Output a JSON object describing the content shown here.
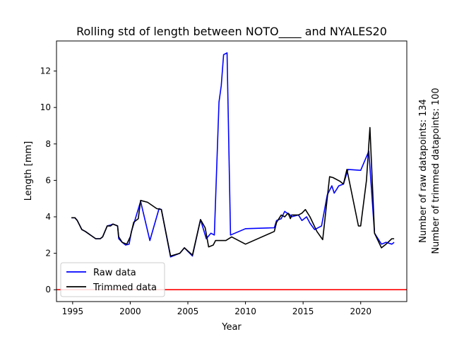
{
  "chart_data": {
    "type": "line",
    "title": "Rolling std of length between NOTO____ and NYALES20",
    "xlabel": "Year",
    "ylabel": "Length [mm]",
    "xlim": [
      1993.6,
      2024.0
    ],
    "ylim": [
      -0.65,
      13.65
    ],
    "x_ticks": [
      1995,
      2000,
      2005,
      2010,
      2015,
      2020
    ],
    "y_ticks": [
      0,
      2,
      4,
      6,
      8,
      10,
      12
    ],
    "grid": false,
    "legend_position": "lower-left",
    "side_annotations": [
      "Number of raw datapoints: 134",
      "Number of trimmed datapoints: 100"
    ],
    "zero_line": {
      "y": 0,
      "color": "#ff0000"
    },
    "series": [
      {
        "name": "Raw data",
        "color": "#0000ff",
        "x": [
          1994.9,
          1995.2,
          1995.4,
          1995.8,
          1996.1,
          1997.0,
          1997.4,
          1997.6,
          1998.0,
          1998.3,
          1998.5,
          1998.9,
          1999.0,
          1999.3,
          1999.6,
          1999.9,
          2000.1,
          2000.4,
          2000.9,
          2001.7,
          2002.5,
          2002.7,
          2003.5,
          2004.3,
          2004.7,
          2005.4,
          2006.1,
          2006.6,
          2007.0,
          2007.3,
          2007.7,
          2007.9,
          2008.1,
          2008.4,
          2008.7,
          2010.0,
          2012.5,
          2012.7,
          2013.1,
          2013.4,
          2013.6,
          2013.8,
          2014.0,
          2014.6,
          2014.9,
          2015.3,
          2015.6,
          2016.0,
          2016.6,
          2017.1,
          2017.5,
          2017.7,
          2017.9,
          2018.1,
          2018.5,
          2018.9,
          2020.0,
          2020.7,
          2021.2,
          2021.8,
          2022.2,
          2022.7,
          2022.9
        ],
        "values": [
          3.95,
          3.95,
          3.8,
          3.3,
          3.2,
          2.8,
          2.8,
          2.9,
          3.5,
          3.55,
          3.6,
          3.5,
          2.8,
          2.6,
          2.45,
          2.5,
          3.2,
          3.8,
          4.85,
          2.7,
          4.45,
          4.4,
          1.8,
          2.0,
          2.3,
          1.85,
          3.85,
          2.8,
          3.1,
          3.0,
          10.3,
          11.2,
          12.9,
          13.0,
          3.0,
          3.35,
          3.4,
          3.8,
          3.9,
          4.3,
          4.2,
          4.15,
          4.0,
          4.1,
          3.8,
          4.0,
          3.65,
          3.3,
          3.5,
          5.2,
          5.7,
          5.3,
          5.5,
          5.7,
          5.8,
          6.6,
          6.55,
          7.6,
          3.1,
          2.5,
          2.6,
          2.5,
          2.6
        ]
      },
      {
        "name": "Trimmed data",
        "color": "#000000",
        "x": [
          1994.9,
          1995.2,
          1995.4,
          1995.8,
          1996.1,
          1997.0,
          1997.4,
          1997.6,
          1998.0,
          1998.3,
          1998.5,
          1998.9,
          1999.0,
          1999.3,
          1999.7,
          2000.0,
          2000.3,
          2000.7,
          2000.9,
          2001.5,
          2002.3,
          2002.7,
          2003.5,
          2004.3,
          2004.7,
          2005.4,
          2006.1,
          2006.5,
          2006.8,
          2007.2,
          2007.4,
          2008.3,
          2008.8,
          2010.0,
          2012.5,
          2012.7,
          2013.1,
          2013.4,
          2013.7,
          2013.9,
          2014.0,
          2014.6,
          2014.9,
          2015.2,
          2015.6,
          2016.2,
          2016.7,
          2017.3,
          2017.6,
          2018.2,
          2018.5,
          2018.8,
          2019.8,
          2020.0,
          2020.5,
          2020.8,
          2021.2,
          2021.8,
          2022.2,
          2022.7,
          2022.9
        ],
        "values": [
          3.95,
          3.95,
          3.8,
          3.3,
          3.2,
          2.8,
          2.8,
          2.9,
          3.5,
          3.5,
          3.6,
          3.5,
          2.9,
          2.6,
          2.5,
          2.9,
          3.7,
          3.9,
          4.9,
          4.8,
          4.45,
          4.4,
          1.85,
          2.0,
          2.3,
          1.9,
          3.85,
          3.4,
          2.35,
          2.45,
          2.7,
          2.7,
          2.9,
          2.5,
          3.2,
          3.7,
          4.1,
          4.0,
          4.2,
          3.9,
          4.1,
          4.1,
          4.2,
          4.4,
          4.0,
          3.2,
          2.75,
          6.2,
          6.15,
          5.95,
          5.8,
          6.6,
          3.5,
          3.5,
          6.0,
          8.9,
          3.1,
          2.3,
          2.5,
          2.8,
          2.8
        ]
      }
    ]
  }
}
